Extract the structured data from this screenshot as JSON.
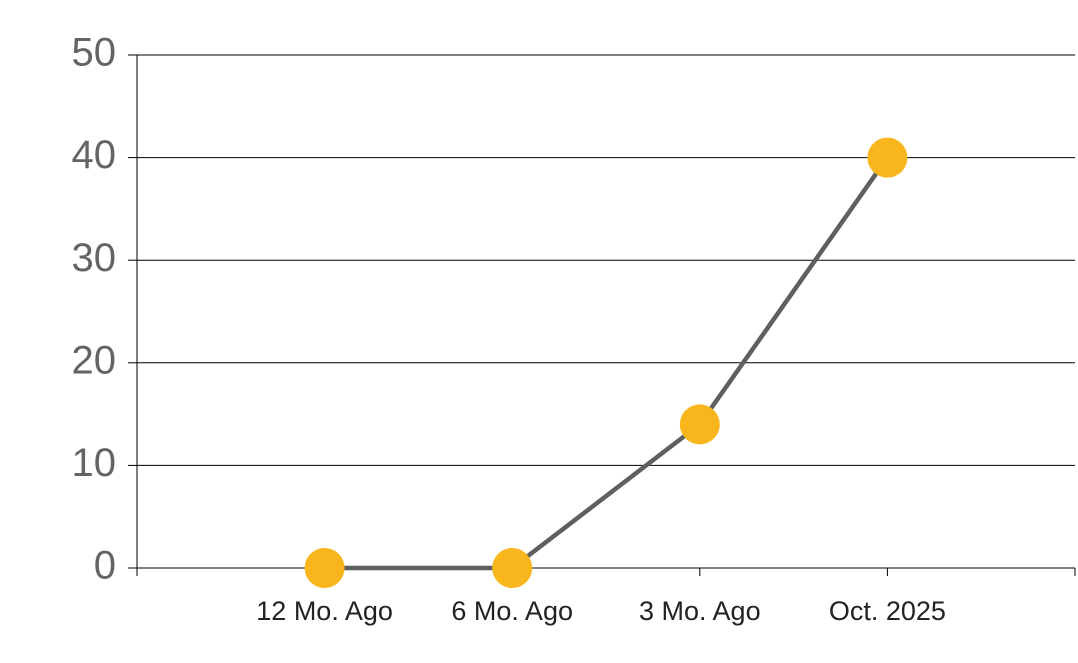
{
  "chart_data": {
    "type": "line",
    "categories": [
      "12 Mo. Ago",
      "6 Mo. Ago",
      "3 Mo. Ago",
      "Oct. 2025"
    ],
    "series": [
      {
        "values": [
          0,
          0,
          14,
          40
        ],
        "color": "#5f5f5f",
        "marker_color": "#f8b51c"
      }
    ],
    "ylim": [
      0,
      50
    ],
    "yticks": [
      0,
      10,
      20,
      30,
      40,
      50
    ],
    "grid": true
  }
}
